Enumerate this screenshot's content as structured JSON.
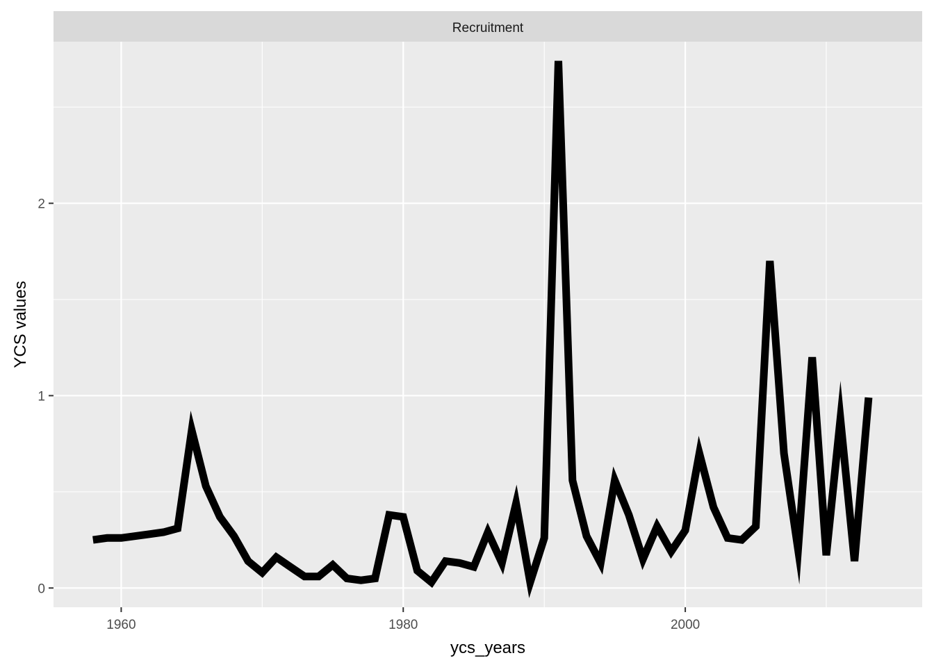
{
  "chart_data": {
    "type": "line",
    "facet_label": "Recruitment",
    "xlabel": "ycs_years",
    "ylabel": "YCS values",
    "xlim": [
      1955.2,
      2016.8
    ],
    "ylim": [
      -0.1,
      2.84
    ],
    "x_ticks": [
      1960,
      1980,
      2000
    ],
    "x_tick_labels": [
      "1960",
      "1980",
      "2000"
    ],
    "x_minor": [
      1970,
      1990,
      2010
    ],
    "y_ticks": [
      0,
      1,
      2
    ],
    "y_tick_labels": [
      "0",
      "1",
      "2"
    ],
    "y_minor": [
      0.5,
      1.5,
      2.5
    ],
    "grid": true,
    "colors": {
      "panel_background": "#ebebeb",
      "strip_background": "#d9d9d9",
      "grid": "#ffffff",
      "line": "#000000"
    },
    "series": [
      {
        "x": [
          1958,
          1959,
          1960,
          1961,
          1962,
          1963,
          1964,
          1965,
          1966,
          1967,
          1968,
          1969,
          1970,
          1971,
          1972,
          1973,
          1974,
          1975,
          1976,
          1977,
          1978,
          1979,
          1980,
          1981,
          1982,
          1983,
          1984,
          1985,
          1986,
          1987,
          1988,
          1989,
          1990,
          1991,
          1992,
          1993,
          1994,
          1995,
          1996,
          1997,
          1998,
          1999,
          2000,
          2001,
          2002,
          2003,
          2004,
          2005,
          2006,
          2007,
          2008,
          2009,
          2010,
          2011,
          2012,
          2013
        ],
        "values": [
          0.25,
          0.26,
          0.26,
          0.27,
          0.28,
          0.29,
          0.31,
          0.82,
          0.53,
          0.37,
          0.27,
          0.14,
          0.08,
          0.16,
          0.11,
          0.06,
          0.06,
          0.12,
          0.05,
          0.04,
          0.05,
          0.38,
          0.37,
          0.09,
          0.03,
          0.14,
          0.13,
          0.11,
          0.29,
          0.13,
          0.44,
          0.03,
          0.26,
          2.74,
          0.56,
          0.27,
          0.13,
          0.56,
          0.38,
          0.15,
          0.32,
          0.19,
          0.3,
          0.7,
          0.42,
          0.26,
          0.25,
          0.32,
          1.7,
          0.7,
          0.2,
          1.2,
          0.17,
          0.88,
          0.14,
          0.99
        ]
      }
    ]
  }
}
